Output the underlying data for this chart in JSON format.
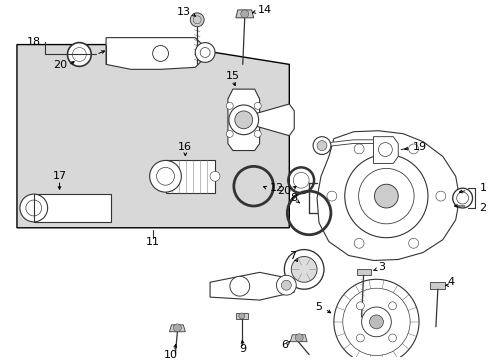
{
  "bg": "#ffffff",
  "box_fill": "#d8d8d8",
  "line_color": "#333333",
  "label_fs": 8,
  "arrow_lw": 0.7,
  "part_lw": 0.8
}
